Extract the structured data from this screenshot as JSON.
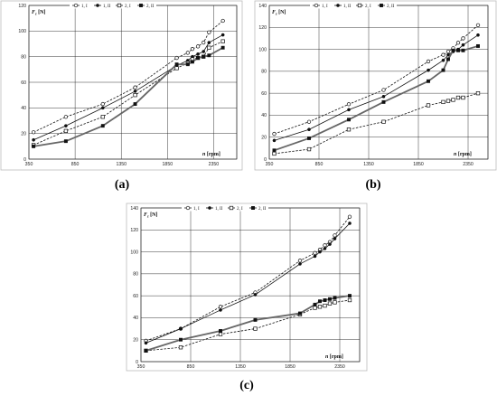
{
  "chart_data": [
    {
      "type": "line",
      "panel_label": "(a)",
      "ylabel": "Fz [N]",
      "ylabel_main": "F",
      "ylabel_sub": "z",
      "ylabel_unit": " [N]",
      "xlabel": "n [rpm]",
      "xlabel_var": "n",
      "xlabel_unit": " [rpm]",
      "xlim": [
        350,
        2600
      ],
      "ylim": [
        0,
        120
      ],
      "xticks": [
        350,
        850,
        1350,
        1850,
        2350
      ],
      "yticks": [
        0,
        20,
        40,
        60,
        80,
        100,
        120
      ],
      "grid": true,
      "legend_position": "top-left",
      "series": [
        {
          "name": "1, I",
          "style": "dashed",
          "marker": "circle-open",
          "color": "#111111",
          "x": [
            400,
            750,
            1150,
            1500,
            1950,
            2070,
            2120,
            2180,
            2240,
            2300,
            2450
          ],
          "y": [
            21,
            33,
            43,
            56,
            79,
            83,
            86,
            88,
            91,
            99,
            108
          ]
        },
        {
          "name": "1, II",
          "style": "solid",
          "marker": "circle-filled",
          "color": "#111111",
          "x": [
            400,
            750,
            1150,
            1500,
            1950,
            2070,
            2120,
            2180,
            2240,
            2300,
            2450
          ],
          "y": [
            15,
            26,
            40,
            53,
            73,
            77,
            80,
            82,
            84,
            91,
            97
          ]
        },
        {
          "name": "2, I",
          "style": "dashed",
          "marker": "square-open",
          "color": "#111111",
          "x": [
            400,
            750,
            1150,
            1500,
            1950,
            2070,
            2120,
            2180,
            2240,
            2300,
            2450
          ],
          "y": [
            11,
            22,
            33,
            50,
            71,
            75,
            78,
            79,
            80,
            87,
            92
          ]
        },
        {
          "name": "2, II",
          "style": "solid-thick",
          "marker": "square-filled",
          "color": "#666666",
          "x": [
            400,
            750,
            1150,
            1500,
            1950,
            2070,
            2120,
            2180,
            2240,
            2300,
            2450
          ],
          "y": [
            10,
            14,
            26,
            43,
            74,
            74,
            76,
            79,
            80,
            81,
            87
          ]
        }
      ]
    },
    {
      "type": "line",
      "panel_label": "(b)",
      "ylabel": "Fz [N]",
      "ylabel_main": "F",
      "ylabel_sub": "z",
      "ylabel_unit": " [N]",
      "xlabel": "n [rpm]",
      "xlabel_var": "n",
      "xlabel_unit": " [rpm]",
      "xlim": [
        350,
        2550
      ],
      "ylim": [
        0,
        140
      ],
      "xticks": [
        350,
        850,
        1350,
        1850,
        2350
      ],
      "yticks": [
        0,
        20,
        40,
        60,
        80,
        100,
        120,
        140
      ],
      "grid": true,
      "legend_position": "top-left",
      "series": [
        {
          "name": "1, I",
          "style": "dashed",
          "marker": "circle-open",
          "color": "#111111",
          "x": [
            400,
            750,
            1150,
            1500,
            1950,
            2100,
            2150,
            2200,
            2250,
            2300,
            2450
          ],
          "y": [
            23,
            34,
            50,
            63,
            89,
            95,
            98,
            101,
            106,
            110,
            122
          ]
        },
        {
          "name": "1, II",
          "style": "solid",
          "marker": "circle-filled",
          "color": "#111111",
          "x": [
            400,
            750,
            1150,
            1500,
            1950,
            2100,
            2150,
            2200,
            2250,
            2300,
            2450
          ],
          "y": [
            17,
            27,
            45,
            57,
            81,
            90,
            95,
            98,
            100,
            104,
            113
          ]
        },
        {
          "name": "2, I",
          "style": "dashed",
          "marker": "square-open",
          "color": "#111111",
          "x": [
            400,
            750,
            1150,
            1500,
            1950,
            2100,
            2150,
            2200,
            2250,
            2300,
            2450
          ],
          "y": [
            5,
            9,
            27,
            34,
            49,
            52,
            53,
            54,
            56,
            56,
            60
          ]
        },
        {
          "name": "2, II",
          "style": "solid-thick",
          "marker": "square-filled",
          "color": "#666666",
          "x": [
            400,
            750,
            1150,
            1500,
            1950,
            2100,
            2150,
            2200,
            2250,
            2300,
            2450
          ],
          "y": [
            8,
            19,
            36,
            52,
            71,
            81,
            91,
            99,
            99,
            99,
            103
          ]
        }
      ]
    },
    {
      "type": "line",
      "panel_label": "(c)",
      "ylabel": "Fz [N]",
      "ylabel_main": "F",
      "ylabel_sub": "z",
      "ylabel_unit": " [N]",
      "xlabel": "n [rpm]",
      "xlabel_var": "n",
      "xlabel_unit": " [rpm]",
      "xlim": [
        350,
        2550
      ],
      "ylim": [
        0,
        140
      ],
      "xticks": [
        350,
        850,
        1350,
        1850,
        2350
      ],
      "yticks": [
        0,
        20,
        40,
        60,
        80,
        100,
        120,
        140
      ],
      "grid": true,
      "legend_position": "top-left",
      "series": [
        {
          "name": "1, I",
          "style": "dashed",
          "marker": "circle-open",
          "color": "#111111",
          "x": [
            400,
            750,
            1150,
            1500,
            1950,
            2100,
            2150,
            2200,
            2250,
            2300,
            2450
          ],
          "y": [
            19,
            30,
            50,
            63,
            92,
            99,
            102,
            106,
            109,
            115,
            132
          ]
        },
        {
          "name": "1, II",
          "style": "solid",
          "marker": "circle-filled",
          "color": "#111111",
          "x": [
            400,
            750,
            1150,
            1500,
            1950,
            2100,
            2150,
            2200,
            2250,
            2300,
            2450
          ],
          "y": [
            17,
            30,
            47,
            61,
            89,
            96,
            100,
            103,
            107,
            112,
            126
          ]
        },
        {
          "name": "2, I",
          "style": "dashed",
          "marker": "square-open",
          "color": "#111111",
          "x": [
            400,
            750,
            1150,
            1500,
            1950,
            2100,
            2150,
            2200,
            2250,
            2300,
            2450
          ],
          "y": [
            10,
            13,
            25,
            30,
            43,
            49,
            50,
            51,
            53,
            54,
            56
          ]
        },
        {
          "name": "2, II",
          "style": "solid-thick",
          "marker": "square-filled",
          "color": "#666666",
          "x": [
            400,
            750,
            1150,
            1500,
            1950,
            2100,
            2150,
            2200,
            2250,
            2300,
            2450
          ],
          "y": [
            10,
            20,
            28,
            38,
            44,
            52,
            55,
            56,
            57,
            58,
            60
          ]
        }
      ]
    }
  ]
}
